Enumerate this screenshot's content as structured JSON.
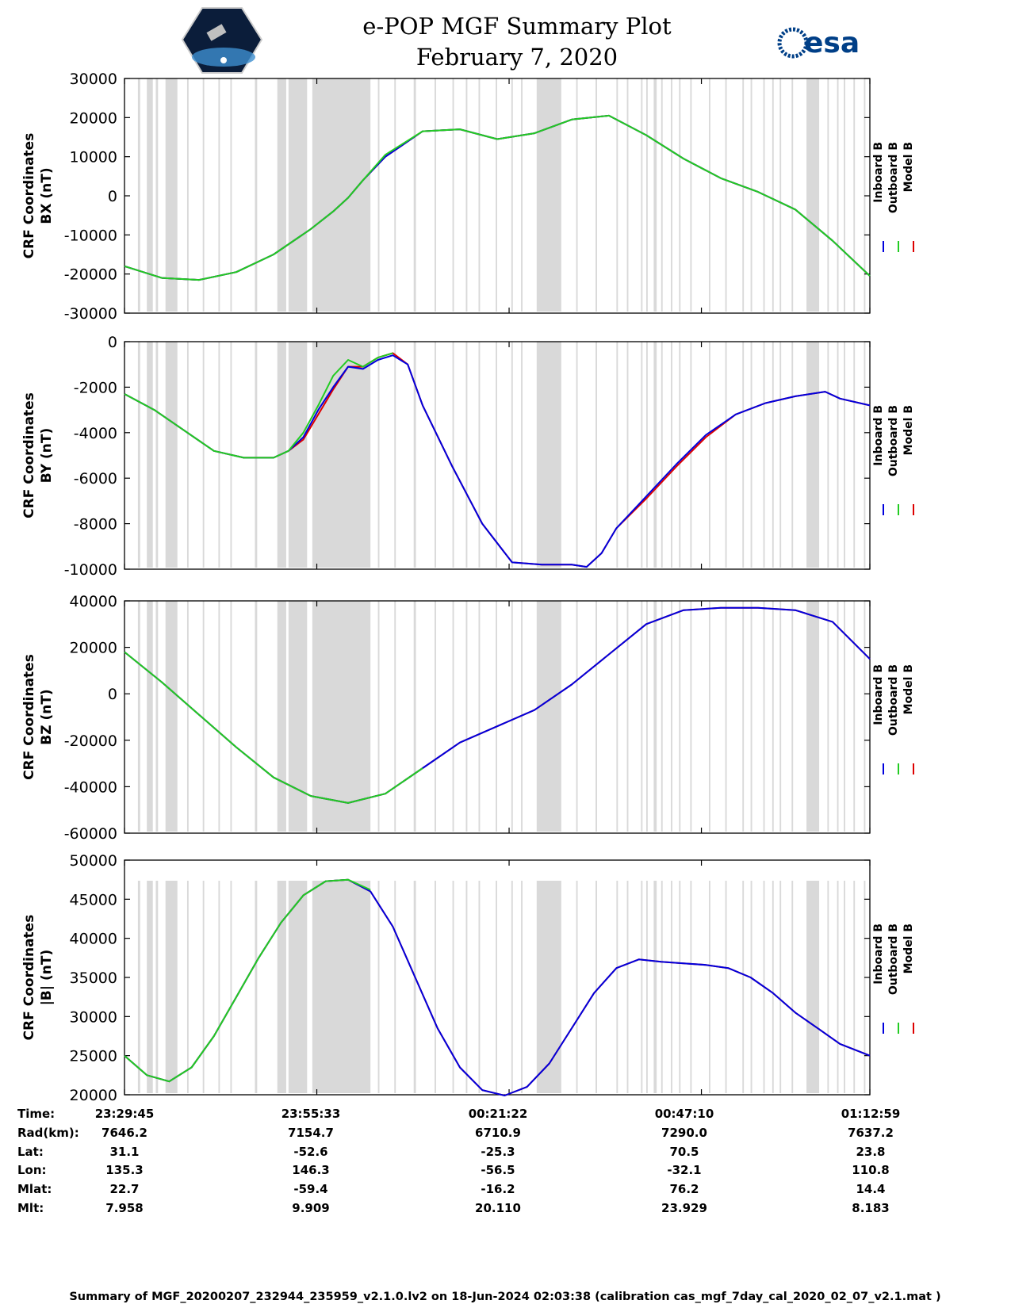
{
  "header": {
    "title_line1": "e-POP MGF Summary Plot",
    "title_line2": "February 7, 2020",
    "left_logo": "cassiope-mission-logo",
    "right_logo_text": "esa"
  },
  "colors": {
    "inboard": "#0000dd",
    "outboard": "#22cc22",
    "model": "#dd0000",
    "gap_shading": "#d9d9d9"
  },
  "legend": {
    "inboard": "Inboard B",
    "outboard": "Outboard B",
    "model": "Model B"
  },
  "chart_data": [
    {
      "type": "line",
      "id": "bx",
      "ylabel_line1": "CRF Coordinates",
      "ylabel_line2": "BX (nT)",
      "ylim": [
        -30000,
        30000
      ],
      "yticks": [
        "30000",
        "20000",
        "10000",
        "0",
        "-10000",
        "-20000",
        "-30000"
      ],
      "x_minutes": [
        0,
        5,
        10,
        15,
        20,
        25,
        28,
        30,
        32,
        35,
        40,
        45,
        50,
        55,
        60,
        65,
        70,
        75,
        80,
        85,
        90,
        95,
        100
      ],
      "series": [
        {
          "name": "Inboard B",
          "values": [
            -18000,
            -21000,
            -21500,
            -19500,
            -15000,
            -8500,
            -4000,
            -500,
            4000,
            10000,
            16500,
            17000,
            14500,
            16000,
            19500,
            20500,
            15500,
            9500,
            4500,
            1000,
            -3500,
            -11500,
            -20500
          ]
        },
        {
          "name": "Outboard B",
          "values": [
            -18000,
            -21000,
            -21500,
            -19500,
            -15000,
            -8500,
            -4000,
            -500,
            4000,
            10500,
            16500,
            17000,
            14500,
            16000,
            19500,
            20500,
            15500,
            9500,
            4500,
            1000,
            -3500,
            -11500,
            -20500
          ]
        },
        {
          "name": "Model B",
          "values": [
            -18000,
            -21000,
            -21500,
            -19500,
            -15000,
            -8500,
            -4000,
            -500,
            4000,
            10000,
            16500,
            17000,
            14500,
            16000,
            19500,
            20500,
            15500,
            9500,
            4500,
            1000,
            -3500,
            -11500,
            -20500
          ]
        }
      ]
    },
    {
      "type": "line",
      "id": "by",
      "ylabel_line1": "CRF Coordinates",
      "ylabel_line2": "BY (nT)",
      "ylim": [
        -10000,
        0
      ],
      "yticks": [
        "0",
        "-2000",
        "-4000",
        "-6000",
        "-8000",
        "-10000"
      ],
      "x_minutes": [
        0,
        4,
        8,
        12,
        16,
        20,
        22,
        24,
        26,
        28,
        30,
        32,
        34,
        36,
        38,
        40,
        44,
        48,
        52,
        56,
        60,
        62,
        64,
        66,
        70,
        74,
        78,
        82,
        86,
        90,
        94,
        96,
        100
      ],
      "series": [
        {
          "name": "Inboard B",
          "values": [
            -2300,
            -3000,
            -3900,
            -4800,
            -5100,
            -5100,
            -4800,
            -4200,
            -3000,
            -2000,
            -1100,
            -1200,
            -800,
            -600,
            -1000,
            -2800,
            -5500,
            -8000,
            -9700,
            -9800,
            -9800,
            -9900,
            -9300,
            -8200,
            -6800,
            -5400,
            -4100,
            -3200,
            -2700,
            -2400,
            -2200,
            -2500,
            -2800
          ]
        },
        {
          "name": "Outboard B",
          "values": [
            -2300,
            -3000,
            -3900,
            -4800,
            -5100,
            -5100,
            -4800,
            -4000,
            -2800,
            -1500,
            -800,
            -1100,
            -700,
            -500
          ]
        },
        {
          "name": "Model B",
          "values": [
            -2300,
            -3000,
            -3900,
            -4800,
            -5100,
            -5100,
            -4800,
            -4300,
            -3200,
            -2100,
            -1100,
            -1100,
            -700,
            -500,
            -1000,
            -2800,
            -5500,
            -8000,
            -9700,
            -9800,
            -9800,
            -9900,
            -9300,
            -8200,
            -6900,
            -5500,
            -4200,
            -3200,
            -2700,
            -2400,
            -2200,
            -2500,
            -2800
          ]
        }
      ]
    },
    {
      "type": "line",
      "id": "bz",
      "ylabel_line1": "CRF Coordinates",
      "ylabel_line2": "BZ (nT)",
      "ylim": [
        -60000,
        40000
      ],
      "yticks": [
        "40000",
        "20000",
        "0",
        "-20000",
        "-40000",
        "-60000"
      ],
      "x_minutes": [
        0,
        5,
        10,
        15,
        20,
        25,
        30,
        35,
        40,
        45,
        50,
        55,
        60,
        65,
        70,
        75,
        80,
        85,
        90,
        95,
        100
      ],
      "series": [
        {
          "name": "Inboard B",
          "values": [
            18000,
            5000,
            -9000,
            -23000,
            -36000,
            -44000,
            -47000,
            -43000,
            -32000,
            -21000,
            -14000,
            -7000,
            4000,
            17000,
            30000,
            36000,
            37000,
            37000,
            36000,
            31000,
            15000
          ]
        },
        {
          "name": "Outboard B",
          "values": [
            18000,
            5000,
            -9000,
            -23000,
            -36000,
            -44000,
            -47000,
            -43000,
            -32000
          ]
        },
        {
          "name": "Model B",
          "values": [
            18000,
            5000,
            -9000,
            -23000,
            -36000,
            -44000,
            -47000,
            -43000,
            -32000,
            -21000,
            -14000,
            -7000,
            4000,
            17000,
            30000,
            36000,
            37000,
            37000,
            36000,
            31000,
            15000
          ]
        }
      ]
    },
    {
      "type": "line",
      "id": "bmag",
      "ylabel_line1": "CRF Coordinates",
      "ylabel_line2": "|B| (nT)",
      "ylim": [
        20000,
        50000
      ],
      "yticks": [
        "50000",
        "45000",
        "40000",
        "35000",
        "30000",
        "25000",
        "20000"
      ],
      "x_minutes": [
        0,
        3,
        6,
        9,
        12,
        15,
        18,
        21,
        24,
        27,
        30,
        33,
        36,
        39,
        42,
        45,
        48,
        51,
        54,
        57,
        60,
        63,
        66,
        69,
        72,
        75,
        78,
        81,
        84,
        87,
        90,
        93,
        96,
        100
      ],
      "series": [
        {
          "name": "Inboard B",
          "values": [
            25000,
            22500,
            21700,
            23500,
            27500,
            32500,
            37500,
            42000,
            45500,
            47300,
            47500,
            46000,
            41500,
            35000,
            28500,
            23500,
            20600,
            19900,
            21000,
            24000,
            28500,
            33000,
            36200,
            37300,
            37000,
            36800,
            36600,
            36200,
            35000,
            33000,
            30500,
            28500,
            26500,
            25000
          ]
        },
        {
          "name": "Outboard B",
          "values": [
            25000,
            22500,
            21700,
            23500,
            27500,
            32500,
            37500,
            42000,
            45500,
            47300,
            47500,
            46200
          ]
        },
        {
          "name": "Model B",
          "values": [
            25000,
            22500,
            21700,
            23500,
            27500,
            32500,
            37500,
            42000,
            45500,
            47300,
            47500,
            46000,
            41500,
            35000,
            28500,
            23500,
            20600,
            19900,
            21000,
            24000,
            28500,
            33000,
            36200,
            37300,
            37000,
            36800,
            36600,
            36200,
            35000,
            33000,
            30500,
            28500,
            26500,
            25000
          ]
        }
      ]
    }
  ],
  "x_axis": {
    "range_minutes": [
      0,
      100
    ],
    "gap_intervals_minutes": [
      [
        1.8,
        2.1
      ],
      [
        3.0,
        3.8
      ],
      [
        4.2,
        4.5
      ],
      [
        5.5,
        7.1
      ],
      [
        8.4,
        8.6
      ],
      [
        10.5,
        10.7
      ],
      [
        12.6,
        12.8
      ],
      [
        14.2,
        14.4
      ],
      [
        17.5,
        17.8
      ],
      [
        20.5,
        21.7
      ],
      [
        22.0,
        24.5
      ],
      [
        25.2,
        33.0
      ],
      [
        34.0,
        34.2
      ],
      [
        36.2,
        36.4
      ],
      [
        38.8,
        39.1
      ],
      [
        41.6,
        41.8
      ],
      [
        44.0,
        44.2
      ],
      [
        45.8,
        46.0
      ],
      [
        47.5,
        47.7
      ],
      [
        49.8,
        50.0
      ],
      [
        51.9,
        52.1
      ],
      [
        53.2,
        53.4
      ],
      [
        55.3,
        58.6
      ],
      [
        60.6,
        60.8
      ],
      [
        63.2,
        63.4
      ],
      [
        66.0,
        66.2
      ],
      [
        67.4,
        67.6
      ],
      [
        69.3,
        69.5
      ],
      [
        70.0,
        70.2
      ],
      [
        71.0,
        71.4
      ],
      [
        72.0,
        72.2
      ],
      [
        73.3,
        73.5
      ],
      [
        74.4,
        74.6
      ],
      [
        75.9,
        76.1
      ],
      [
        78.4,
        78.6
      ],
      [
        80.6,
        80.8
      ],
      [
        82.9,
        83.1
      ],
      [
        84.0,
        84.2
      ],
      [
        85.7,
        85.9
      ],
      [
        86.9,
        87.1
      ],
      [
        87.9,
        88.1
      ],
      [
        89.5,
        89.7
      ],
      [
        91.5,
        93.2
      ],
      [
        94.3,
        94.5
      ],
      [
        95.6,
        95.8
      ],
      [
        96.5,
        96.7
      ],
      [
        97.8,
        98.0
      ],
      [
        99.2,
        99.4
      ]
    ]
  },
  "ephemeris": {
    "row_labels": [
      "Time:",
      "Rad(km):",
      "Lat:",
      "Lon:",
      "Mlat:",
      "Mlt:"
    ],
    "columns": [
      [
        "23:29:45",
        "7646.2",
        "31.1",
        "135.3",
        "22.7",
        "7.958"
      ],
      [
        "23:55:33",
        "7154.7",
        "-52.6",
        "146.3",
        "-59.4",
        "9.909"
      ],
      [
        "00:21:22",
        "6710.9",
        "-25.3",
        "-56.5",
        "-16.2",
        "20.110"
      ],
      [
        "00:47:10",
        "7290.0",
        "70.5",
        "-32.1",
        "76.2",
        "23.929"
      ],
      [
        "01:12:59",
        "7637.2",
        "23.8",
        "110.8",
        "14.4",
        "8.183"
      ]
    ]
  },
  "footer": "Summary of MGF_20200207_232944_235959_v2.1.0.lv2 on 18-Jun-2024 02:03:38 (calibration cas_mgf_7day_cal_2020_02_07_v2.1.mat )"
}
